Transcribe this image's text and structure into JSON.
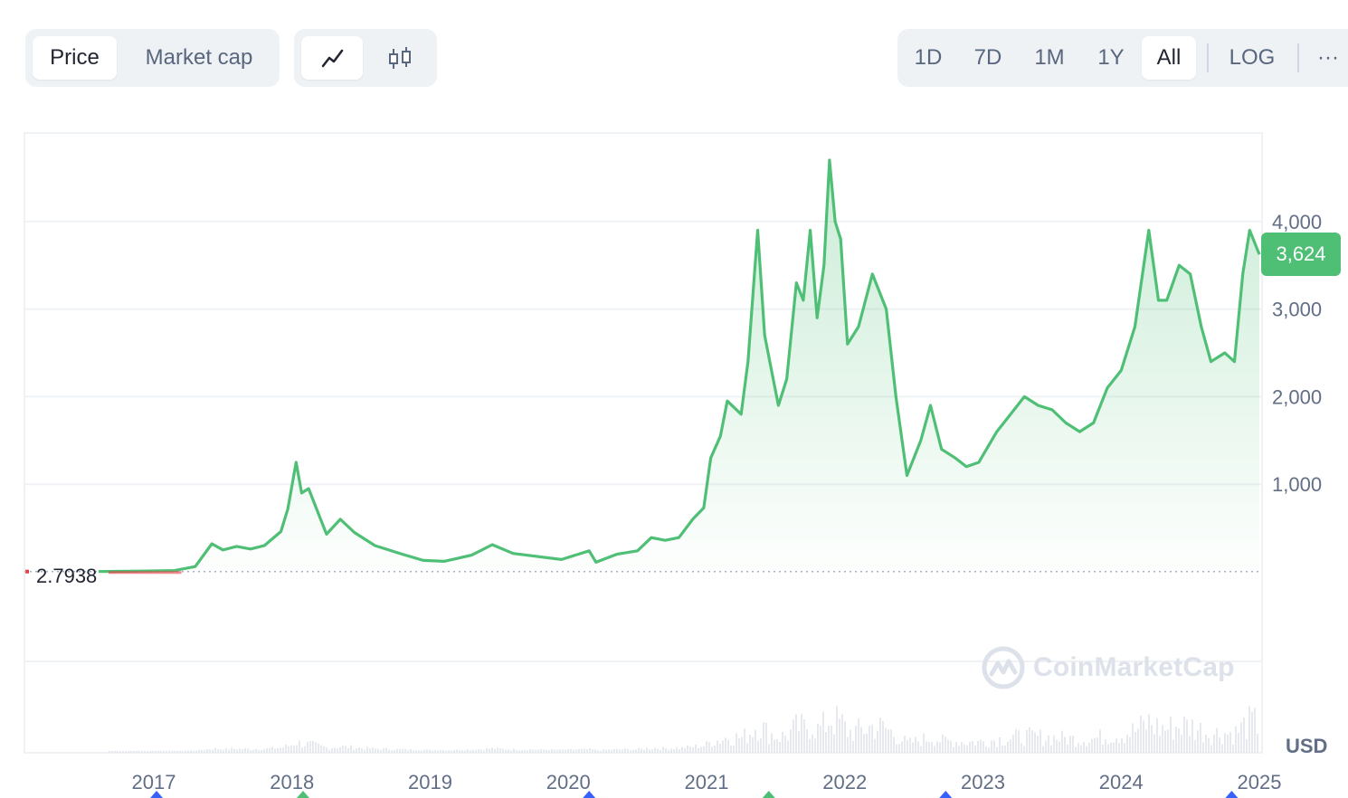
{
  "toolbar": {
    "type_tabs": [
      {
        "label": "Price",
        "active": true
      },
      {
        "label": "Market cap",
        "active": false
      }
    ],
    "style_buttons": [
      {
        "icon": "line-chart-icon",
        "active": true
      },
      {
        "icon": "candlestick-icon",
        "active": false
      }
    ],
    "range_tabs": [
      {
        "label": "1D",
        "active": false
      },
      {
        "label": "7D",
        "active": false
      },
      {
        "label": "1M",
        "active": false
      },
      {
        "label": "1Y",
        "active": false
      },
      {
        "label": "All",
        "active": true
      }
    ],
    "log_label": "LOG",
    "more_label": "···"
  },
  "chart": {
    "current_price_label": "3,624",
    "start_price_label": "2.7938",
    "currency": "USD",
    "watermark": "CoinMarketCap",
    "colors": {
      "line": "#4fbf76",
      "area_top": "#4fbf76",
      "grid": "#eff2f5",
      "baseline": "#cfd6e4",
      "start_segment": "#ea3943",
      "volume": "#e6e9ee"
    }
  },
  "chart_data": {
    "type": "area",
    "title": "",
    "xlabel": "",
    "ylabel": "",
    "x_ticks": [
      "2017",
      "2018",
      "2019",
      "2020",
      "2021",
      "2022",
      "2023",
      "2024",
      "2025"
    ],
    "y_ticks": [
      1000,
      2000,
      3000,
      4000
    ],
    "y_tick_labels": [
      "1,000",
      "2,000",
      "3,000",
      "4,000"
    ],
    "ylim": [
      0,
      4900
    ],
    "start_value": 2.7938,
    "current_value": 3624,
    "grid": true,
    "legend": "none",
    "series": [
      {
        "values": [
          [
            2016.6,
            3
          ],
          [
            2016.9,
            8
          ],
          [
            2017.15,
            14
          ],
          [
            2017.3,
            60
          ],
          [
            2017.42,
            320
          ],
          [
            2017.5,
            250
          ],
          [
            2017.6,
            290
          ],
          [
            2017.7,
            260
          ],
          [
            2017.8,
            300
          ],
          [
            2017.92,
            460
          ],
          [
            2017.97,
            720
          ],
          [
            2018.03,
            1250
          ],
          [
            2018.07,
            900
          ],
          [
            2018.12,
            950
          ],
          [
            2018.25,
            430
          ],
          [
            2018.35,
            600
          ],
          [
            2018.45,
            450
          ],
          [
            2018.6,
            300
          ],
          [
            2018.8,
            200
          ],
          [
            2018.95,
            130
          ],
          [
            2019.1,
            120
          ],
          [
            2019.3,
            190
          ],
          [
            2019.45,
            310
          ],
          [
            2019.6,
            210
          ],
          [
            2019.75,
            180
          ],
          [
            2019.95,
            140
          ],
          [
            2020.15,
            240
          ],
          [
            2020.2,
            110
          ],
          [
            2020.35,
            200
          ],
          [
            2020.5,
            240
          ],
          [
            2020.6,
            390
          ],
          [
            2020.7,
            360
          ],
          [
            2020.8,
            390
          ],
          [
            2020.9,
            600
          ],
          [
            2020.98,
            730
          ],
          [
            2021.03,
            1300
          ],
          [
            2021.1,
            1550
          ],
          [
            2021.15,
            1950
          ],
          [
            2021.25,
            1800
          ],
          [
            2021.3,
            2400
          ],
          [
            2021.37,
            3900
          ],
          [
            2021.42,
            2700
          ],
          [
            2021.47,
            2300
          ],
          [
            2021.52,
            1900
          ],
          [
            2021.58,
            2200
          ],
          [
            2021.65,
            3300
          ],
          [
            2021.7,
            3100
          ],
          [
            2021.75,
            3900
          ],
          [
            2021.8,
            2900
          ],
          [
            2021.85,
            3500
          ],
          [
            2021.89,
            4700
          ],
          [
            2021.93,
            4000
          ],
          [
            2021.97,
            3800
          ],
          [
            2022.02,
            2600
          ],
          [
            2022.1,
            2800
          ],
          [
            2022.2,
            3400
          ],
          [
            2022.3,
            3000
          ],
          [
            2022.37,
            2000
          ],
          [
            2022.45,
            1100
          ],
          [
            2022.55,
            1500
          ],
          [
            2022.62,
            1900
          ],
          [
            2022.7,
            1400
          ],
          [
            2022.8,
            1300
          ],
          [
            2022.88,
            1200
          ],
          [
            2022.97,
            1250
          ],
          [
            2023.1,
            1600
          ],
          [
            2023.2,
            1800
          ],
          [
            2023.3,
            2000
          ],
          [
            2023.4,
            1900
          ],
          [
            2023.5,
            1850
          ],
          [
            2023.6,
            1700
          ],
          [
            2023.7,
            1600
          ],
          [
            2023.8,
            1700
          ],
          [
            2023.9,
            2100
          ],
          [
            2024.0,
            2300
          ],
          [
            2024.1,
            2800
          ],
          [
            2024.2,
            3900
          ],
          [
            2024.27,
            3100
          ],
          [
            2024.33,
            3100
          ],
          [
            2024.42,
            3500
          ],
          [
            2024.5,
            3400
          ],
          [
            2024.58,
            2800
          ],
          [
            2024.65,
            2400
          ],
          [
            2024.75,
            2500
          ],
          [
            2024.82,
            2400
          ],
          [
            2024.88,
            3400
          ],
          [
            2024.93,
            3900
          ],
          [
            2025.0,
            3624
          ]
        ]
      }
    ]
  }
}
